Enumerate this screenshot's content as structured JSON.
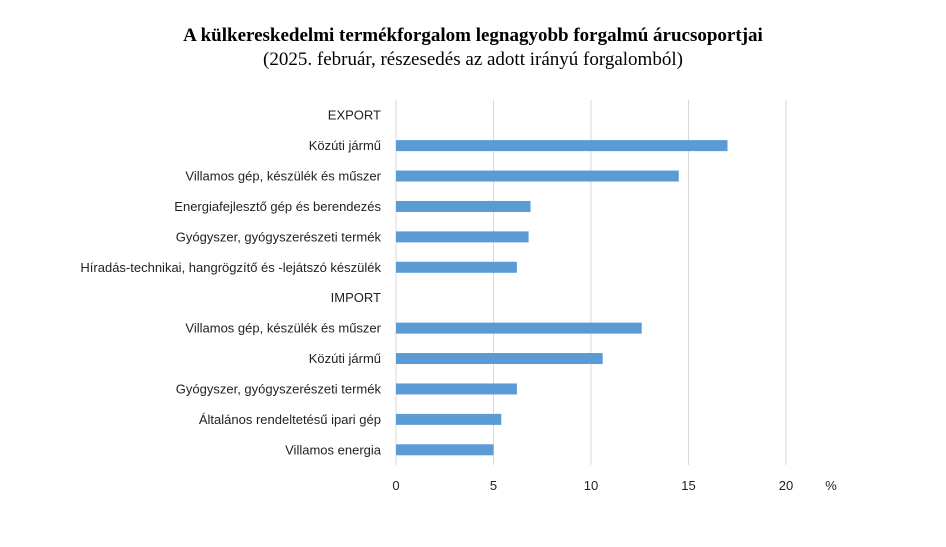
{
  "chart_data": {
    "type": "bar",
    "orientation": "horizontal",
    "title": "A külkereskedelmi termékforgalom legnagyobb forgalmú árucsoportjai",
    "subtitle": "(2025. február, részesedés az adott irányú forgalomból)",
    "unit": "%",
    "xlim": [
      0,
      20
    ],
    "xticks": [
      "0",
      "5",
      "10",
      "15",
      "20"
    ],
    "grid": "vertical",
    "bar_color": "#5B9BD5",
    "categories": [
      "EXPORT",
      "Közúti jármű",
      "Villamos gép, készülék és műszer",
      "Energiafejlesztő gép és berendezés",
      "Gyógyszer, gyógyszerészeti termék",
      "Híradás-technikai, hangrögzítő és -lejátszó készülék",
      "IMPORT",
      "Villamos gép, készülék és műszer",
      "Közúti jármű",
      "Gyógyszer, gyógyszerészeti termék",
      "Általános rendeltetésű ipari gép",
      "Villamos energia"
    ],
    "values": [
      null,
      17.0,
      14.5,
      6.9,
      6.8,
      6.2,
      null,
      12.6,
      10.6,
      6.2,
      5.4,
      5.0
    ]
  }
}
